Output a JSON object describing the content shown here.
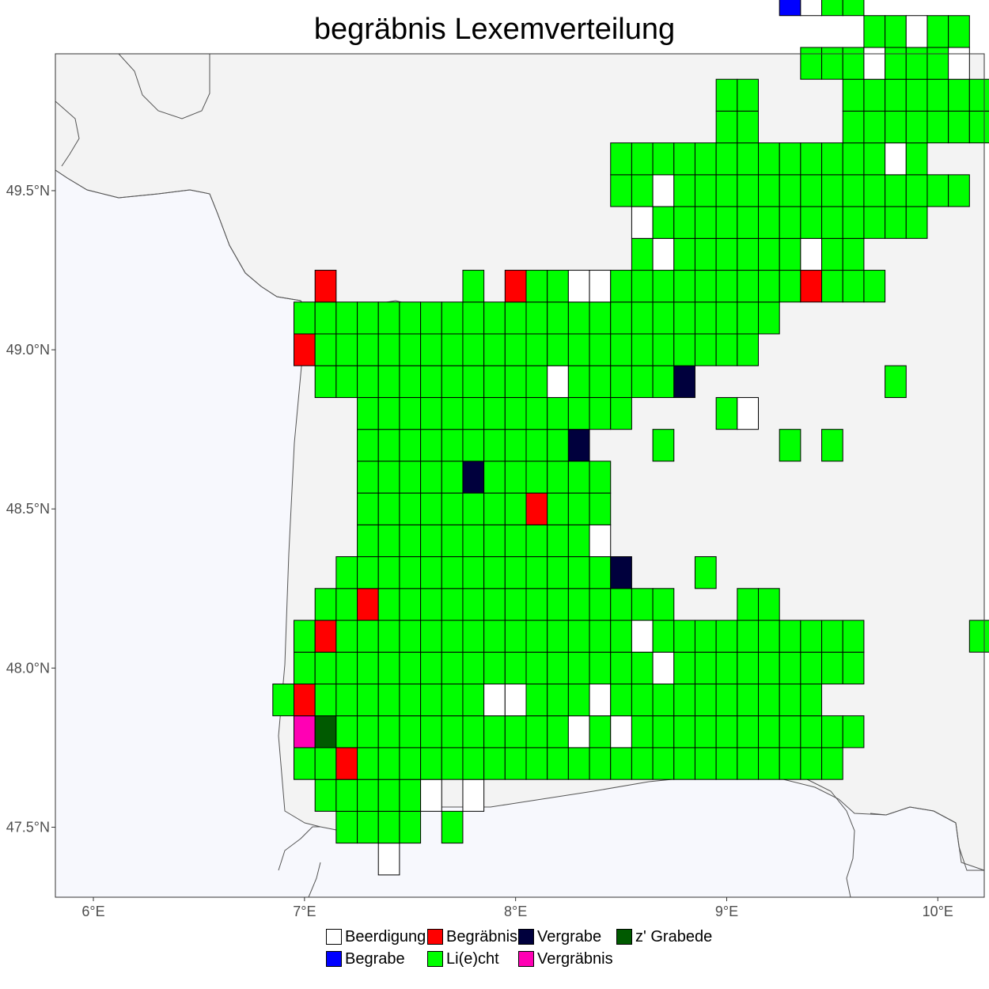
{
  "title": "begräbnis Lexemverteilung",
  "map": {
    "x_ticks": [
      {
        "lon": 6,
        "label": "6°E"
      },
      {
        "lon": 7,
        "label": "7°E"
      },
      {
        "lon": 8,
        "label": "8°E"
      },
      {
        "lon": 9,
        "label": "9°E"
      },
      {
        "lon": 10,
        "label": "10°E"
      }
    ],
    "y_ticks": [
      {
        "lat": 47.5,
        "label": "47.5°N"
      },
      {
        "lat": 48.0,
        "label": "48.0°N"
      },
      {
        "lat": 48.5,
        "label": "48.5°N"
      },
      {
        "lat": 49.0,
        "label": "49.0°N"
      },
      {
        "lat": 49.5,
        "label": "49.5°N"
      }
    ],
    "extent": {
      "lon_min": 5.82,
      "lon_max": 10.22,
      "lat_min": 47.28,
      "lat_max": 49.93
    },
    "grid": {
      "lon0": 6.85,
      "dlon": 0.1,
      "lat0": 47.35,
      "dlat": 0.1
    },
    "colors": {
      "panel": "#f7f8fd",
      "land": "#f3f3f3",
      "border": "#555555",
      "W": "#ffffff",
      "B": "#0000ff",
      "R": "#ff0000",
      "G": "#00ff00",
      "N": "#00003d",
      "P": "#ff00b4",
      "D": "#005a00"
    },
    "rows": [
      {
        "row": 0,
        "start": 5,
        "cells": "W"
      },
      {
        "row": 1,
        "start": 3,
        "cells": "GGGG.G"
      },
      {
        "row": 2,
        "start": 2,
        "cells": "GGGGGW.W"
      },
      {
        "row": 3,
        "start": 1,
        "cells": "GGRGGGGGGGGGGGGGGGGGGGGGGG"
      },
      {
        "row": 4,
        "start": 1,
        "cells": "PDGGGGGGGGGGGWGWGGGGGGGGGGG"
      },
      {
        "row": 5,
        "start": 0,
        "cells": "GRGGGGGGGGWWGGGWGGGGGGGGGG"
      },
      {
        "row": 6,
        "start": 1,
        "cells": "GGGGGGGGGGGGGGGGGWGGGGGGGGG"
      },
      {
        "row": 7,
        "start": 1,
        "cells": "GRGGGGGGGGGGGGGGWGGGGGGGGGG.....G"
      },
      {
        "row": 8,
        "start": 2,
        "cells": "GGRGGGGGGGGGGGGGG...GG"
      },
      {
        "row": 9,
        "start": 3,
        "cells": "GGGGGGGGGGGGGN...G"
      },
      {
        "row": 10,
        "start": 4,
        "cells": "GGGGGGGGGGGW"
      },
      {
        "row": 11,
        "start": 4,
        "cells": "GGGGGGGGRGGG"
      },
      {
        "row": 12,
        "start": 4,
        "cells": "GGGGGNGGGGGG"
      },
      {
        "row": 13,
        "start": 4,
        "cells": "GGGGGGGGGGN...G.....G.G"
      },
      {
        "row": 14,
        "start": 4,
        "cells": "GGGGGGGGGGGGG....GW"
      },
      {
        "row": 15,
        "start": 2,
        "cells": "GGGGGGGGGGGWGGGGGN.........G.....G"
      },
      {
        "row": 16,
        "start": 1,
        "cells": "RGGGGGGGGGGGGGGGGGGGGG"
      },
      {
        "row": 17,
        "start": 1,
        "cells": "GGGGGGGGGGGGGGGGGGGGGGG"
      },
      {
        "row": 18,
        "start": 2,
        "cells": "R......G.RGGWWGGGGGGGGGRGGG"
      },
      {
        "row": 19,
        "start": 17,
        "cells": "GWGGGGGGWGG"
      },
      {
        "row": 20,
        "start": 17,
        "cells": "WGGGGGGGGGGGGG"
      },
      {
        "row": 21,
        "start": 16,
        "cells": "GGWGGGGGGGGGGGGGG"
      },
      {
        "row": 22,
        "start": 16,
        "cells": "GGGGGGGGGGGGGWG"
      },
      {
        "row": 23,
        "start": 21,
        "cells": "GG....GGGGGGGGGW"
      },
      {
        "row": 24,
        "start": 21,
        "cells": "GG....GGGGGGGGGGB"
      },
      {
        "row": 25,
        "start": 25,
        "cells": "GGGWGGGW"
      },
      {
        "row": 26,
        "start": 25,
        "cells": "...GGWGG"
      },
      {
        "row": 27,
        "start": 24,
        "cells": "BWGG"
      }
    ]
  },
  "legend": {
    "items": [
      {
        "key": "W",
        "label": "Beerdigung"
      },
      {
        "key": "R",
        "label": "Begräbnis"
      },
      {
        "key": "N",
        "label": "Vergrabe"
      },
      {
        "key": "D",
        "label": "z' Grabede"
      },
      {
        "key": "B",
        "label": "Begrabe"
      },
      {
        "key": "G",
        "label": "Li(e)cht"
      },
      {
        "key": "P",
        "label": "Vergräbnis"
      }
    ]
  }
}
